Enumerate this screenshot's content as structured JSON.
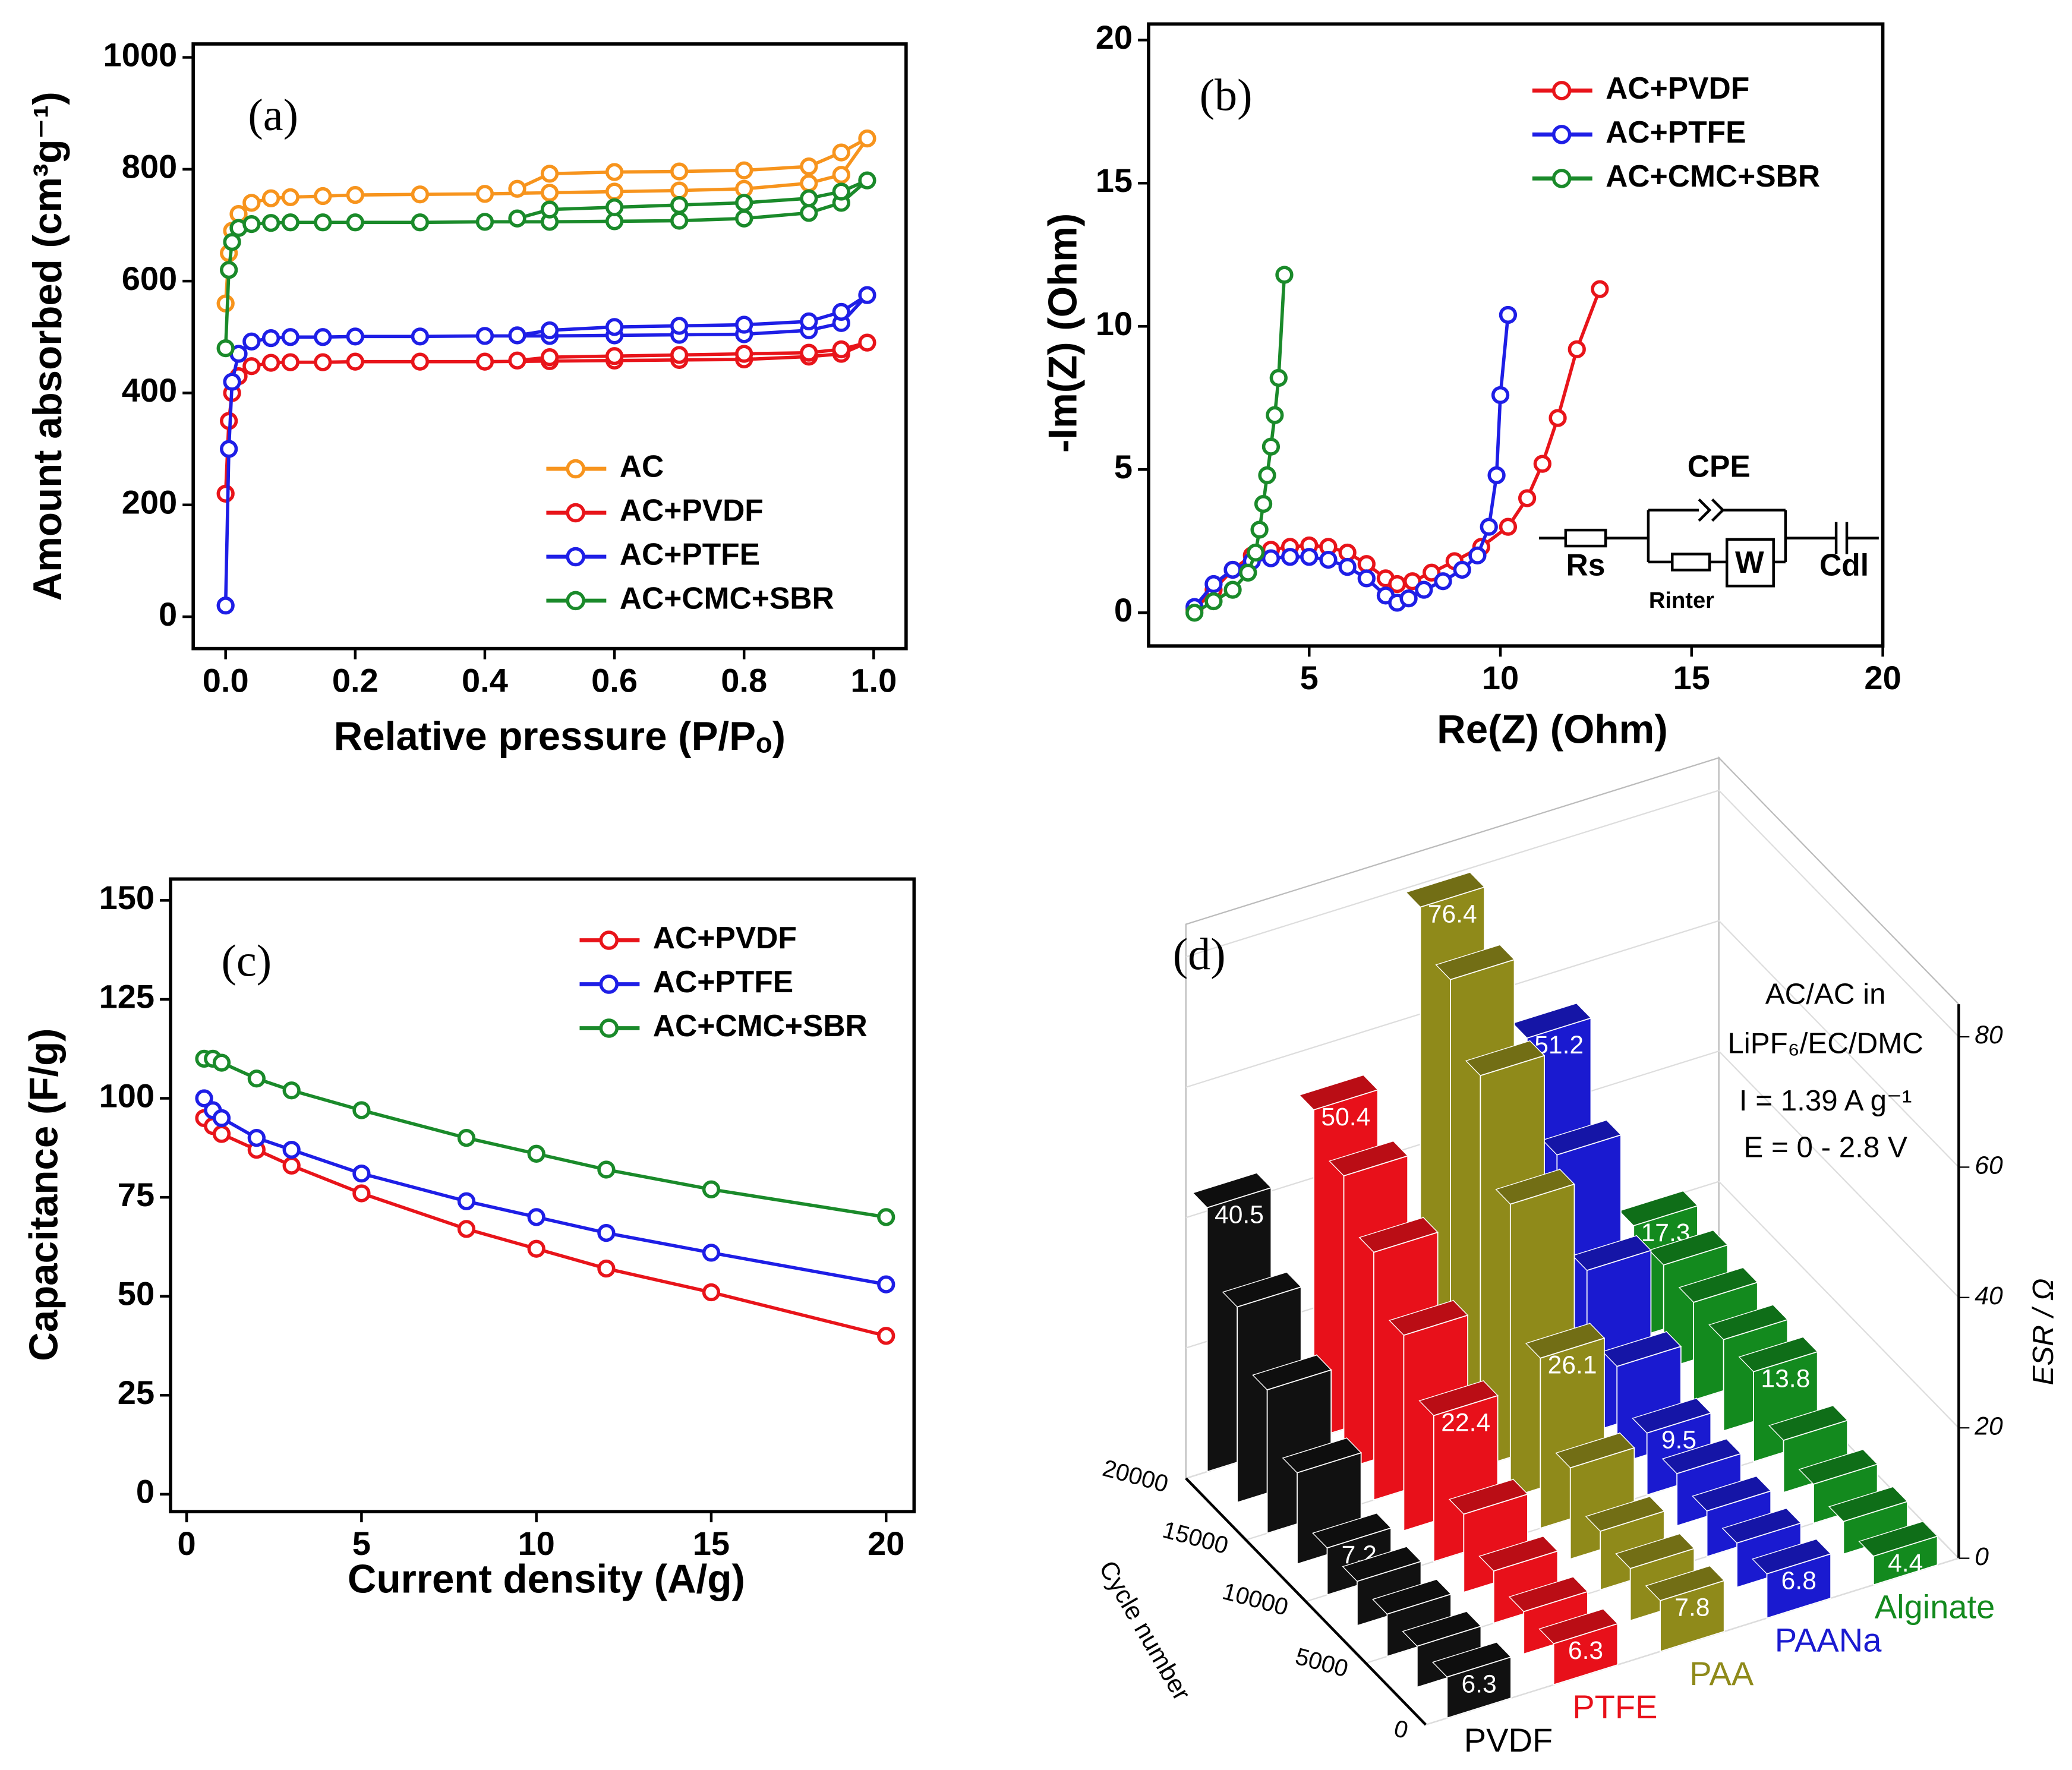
{
  "chart_data": [
    {
      "type": "line",
      "panel_label": "(a)",
      "x_label": "Relative pressure (P/Pₒ)",
      "y_label": "Amount absorbed (cm³g⁻¹)",
      "xlim": [
        -0.05,
        1.05
      ],
      "ylim": [
        -57,
        1024
      ],
      "xticks": [
        {
          "value": 0,
          "label": "0.0"
        },
        0.2,
        0.4,
        0.6,
        0.8,
        {
          "value": 1,
          "label": "1.0"
        }
      ],
      "yticks": [
        0,
        200,
        400,
        600,
        800,
        1000
      ],
      "legend": "lower right",
      "series": [
        {
          "name": "AC",
          "color": "#f7941d",
          "x": [
            0.0,
            0.005,
            0.01,
            0.02,
            0.04,
            0.07,
            0.1,
            0.15,
            0.2,
            0.3,
            0.4,
            0.5,
            0.6,
            0.7,
            0.8,
            0.9,
            0.95,
            0.99,
            0.95,
            0.9,
            0.8,
            0.7,
            0.6,
            0.5,
            0.45
          ],
          "values": [
            560,
            650,
            690,
            720,
            740,
            748,
            750,
            752,
            754,
            755,
            756,
            758,
            760,
            762,
            765,
            775,
            790,
            855,
            830,
            805,
            798,
            796,
            795,
            792,
            765
          ]
        },
        {
          "name": "AC+PVDF",
          "color": "#e8141a",
          "x": [
            0.0,
            0.005,
            0.01,
            0.02,
            0.04,
            0.07,
            0.1,
            0.15,
            0.2,
            0.3,
            0.4,
            0.5,
            0.6,
            0.7,
            0.8,
            0.9,
            0.95,
            0.99,
            0.95,
            0.9,
            0.8,
            0.7,
            0.6,
            0.5,
            0.45
          ],
          "values": [
            220,
            350,
            400,
            430,
            448,
            454,
            455,
            455,
            456,
            456,
            456,
            457,
            458,
            459,
            460,
            465,
            470,
            490,
            478,
            472,
            470,
            468,
            466,
            464,
            458
          ]
        },
        {
          "name": "AC+PTFE",
          "color": "#1e1ee6",
          "x": [
            0.0,
            0.005,
            0.01,
            0.02,
            0.04,
            0.07,
            0.1,
            0.15,
            0.2,
            0.3,
            0.4,
            0.5,
            0.6,
            0.7,
            0.8,
            0.9,
            0.95,
            0.99,
            0.95,
            0.9,
            0.8,
            0.7,
            0.6,
            0.5,
            0.45
          ],
          "values": [
            20,
            300,
            420,
            470,
            492,
            498,
            500,
            500,
            501,
            501,
            502,
            502,
            503,
            504,
            505,
            512,
            525,
            575,
            545,
            528,
            522,
            520,
            518,
            512,
            503
          ]
        },
        {
          "name": "AC+CMC+SBR",
          "color": "#1a8a2a",
          "x": [
            0.0,
            0.005,
            0.01,
            0.02,
            0.04,
            0.07,
            0.1,
            0.15,
            0.2,
            0.3,
            0.4,
            0.5,
            0.6,
            0.7,
            0.8,
            0.9,
            0.95,
            0.99,
            0.95,
            0.9,
            0.8,
            0.7,
            0.6,
            0.5,
            0.45
          ],
          "values": [
            480,
            620,
            670,
            695,
            702,
            704,
            705,
            705,
            705,
            705,
            706,
            706,
            707,
            708,
            712,
            722,
            740,
            780,
            760,
            748,
            740,
            736,
            732,
            728,
            712
          ]
        }
      ]
    },
    {
      "type": "line",
      "panel_label": "(b)",
      "x_label": "Re(Z) (Ohm)",
      "y_label": "-Im(Z) (Ohm)",
      "xlim": [
        0.8,
        20
      ],
      "ylim": [
        -1.16,
        20.56
      ],
      "xticks": [
        5,
        10,
        15,
        20
      ],
      "yticks": [
        0,
        5,
        10,
        15,
        20
      ],
      "legend": "upper right",
      "inset_labels": [
        "CPE",
        "Rs",
        "Rinter",
        "W",
        "Cdl"
      ],
      "series": [
        {
          "name": "AC+PVDF",
          "color": "#e8141a",
          "x": [
            2,
            2.5,
            3,
            3.5,
            4,
            4.5,
            5,
            5.5,
            6,
            6.5,
            7,
            7.3,
            7.7,
            8.2,
            8.8,
            9.5,
            10.2,
            10.7,
            11.1,
            11.5,
            12,
            12.6
          ],
          "values": [
            0.1,
            0.8,
            1.5,
            2,
            2.2,
            2.3,
            2.35,
            2.3,
            2.1,
            1.7,
            1.2,
            1,
            1.1,
            1.4,
            1.8,
            2.3,
            3,
            4,
            5.2,
            6.8,
            9.2,
            11.3
          ]
        },
        {
          "name": "AC+PTFE",
          "color": "#1e1ee6",
          "x": [
            2,
            2.5,
            3,
            3.5,
            4,
            4.5,
            5,
            5.5,
            6,
            6.5,
            7,
            7.3,
            7.6,
            8,
            8.5,
            9,
            9.4,
            9.7,
            9.9,
            10,
            10.2
          ],
          "values": [
            0.2,
            1,
            1.5,
            1.8,
            1.9,
            1.95,
            1.95,
            1.85,
            1.6,
            1.2,
            0.6,
            0.35,
            0.5,
            0.8,
            1.1,
            1.5,
            2,
            3,
            4.8,
            7.6,
            10.4
          ]
        },
        {
          "name": "AC+CMC+SBR",
          "color": "#1a8a2a",
          "x": [
            2,
            2.5,
            3,
            3.4,
            3.6,
            3.7,
            3.8,
            3.9,
            4,
            4.1,
            4.2,
            4.35
          ],
          "values": [
            0,
            0.4,
            0.8,
            1.4,
            2.1,
            2.9,
            3.8,
            4.8,
            5.8,
            6.9,
            8.2,
            11.8
          ]
        }
      ]
    },
    {
      "type": "line",
      "panel_label": "(c)",
      "x_label": "Current density (A/g)",
      "y_label": "Capacitance (F/g)",
      "xlim": [
        -0.46,
        20.8
      ],
      "ylim": [
        -4.4,
        155.4
      ],
      "xticks": [
        0,
        5,
        10,
        15,
        20
      ],
      "yticks": [
        0,
        25,
        50,
        75,
        100,
        125,
        150
      ],
      "legend": "upper right",
      "x": [
        0.5,
        0.75,
        1,
        2,
        3,
        5,
        8,
        10,
        12,
        15,
        20
      ],
      "series": [
        {
          "name": "AC+PVDF",
          "color": "#e8141a",
          "values": [
            95,
            93,
            91,
            87,
            83,
            76,
            67,
            62,
            57,
            51,
            40
          ]
        },
        {
          "name": "AC+PTFE",
          "color": "#1e1ee6",
          "values": [
            100,
            97,
            95,
            90,
            87,
            81,
            74,
            70,
            66,
            61,
            53
          ]
        },
        {
          "name": "AC+CMC+SBR",
          "color": "#1a8a2a",
          "values": [
            110,
            110,
            109,
            105,
            102,
            97,
            90,
            86,
            82,
            77,
            70
          ]
        }
      ]
    },
    {
      "type": "bar3d",
      "panel_label": "(d)",
      "x_label": "Cycle number",
      "y_label": "ESR / Ω",
      "annotations": [
        "AC/AC in",
        "LiPF₆/EC/DMC",
        "I = 1.39 A g⁻¹",
        "E = 0 - 2.8 V"
      ],
      "xlim": [
        0,
        20000
      ],
      "xticks": [
        0,
        5000,
        10000,
        15000,
        20000
      ],
      "ylim": [
        0,
        85
      ],
      "yticks": [
        0,
        20,
        40,
        60,
        80
      ],
      "x": [
        0,
        2500,
        5000,
        7500,
        10000,
        12500,
        15000,
        17500,
        20000
      ],
      "series": [
        {
          "name": "PVDF",
          "color": "#111111",
          "values": [
            6.3,
            6.3,
            6.5,
            6.8,
            7.2,
            14,
            22,
            30,
            40.5
          ]
        },
        {
          "name": "PTFE",
          "color": "#e8101a",
          "values": [
            6.3,
            6.5,
            8,
            12,
            22.4,
            30,
            38,
            45,
            50.4
          ]
        },
        {
          "name": "PAA",
          "color": "#8f8a1a",
          "values": [
            7.8,
            8,
            9,
            14,
            26.1,
            45,
            60,
            70,
            76.4
          ]
        },
        {
          "name": "PAANa",
          "color": "#1a1ad0",
          "values": [
            6.8,
            6.8,
            7,
            8,
            9.5,
            15,
            25,
            38,
            51.2
          ]
        },
        {
          "name": "Alginate",
          "color": "#138a1e",
          "values": [
            4.4,
            5,
            6,
            8,
            13.8,
            14,
            15,
            16,
            17.3
          ]
        }
      ]
    }
  ]
}
